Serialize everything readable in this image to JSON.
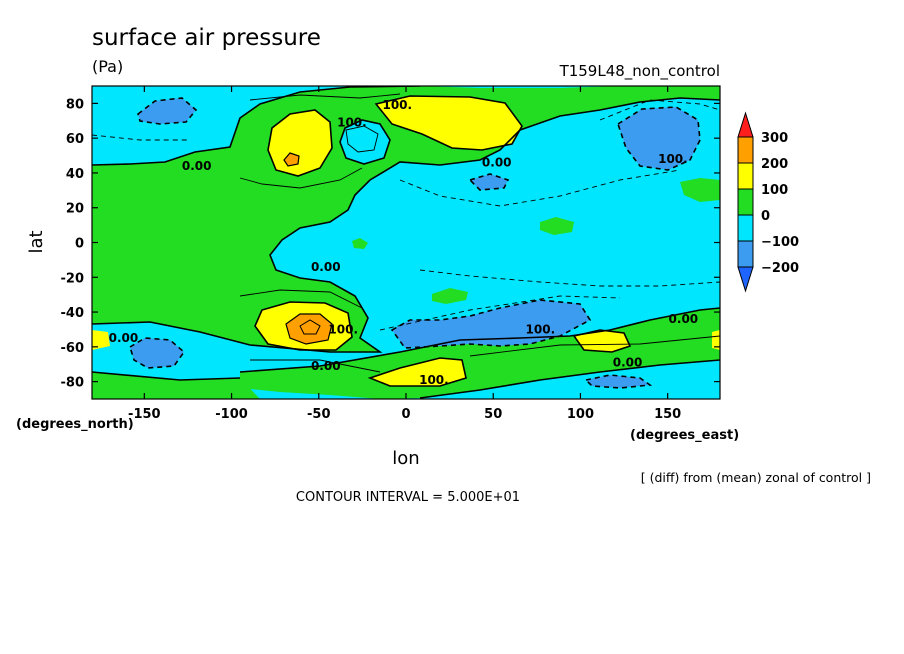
{
  "chart_data": {
    "type": "contour-map",
    "title": "surface air pressure",
    "units": "(Pa)",
    "experiment": "T159L48_non_control",
    "xlabel": "lon",
    "ylabel": "lat",
    "x_unit_label": "(degrees_east)",
    "y_unit_label": "(degrees_north)",
    "xlim": [
      -180,
      180
    ],
    "ylim": [
      -90,
      90
    ],
    "x_ticks": [
      -150,
      -100,
      -50,
      0,
      50,
      100,
      150
    ],
    "y_ticks": [
      80,
      60,
      40,
      20,
      0,
      -20,
      -40,
      -60,
      -80
    ],
    "x_tick_labels": [
      "-150",
      "-100",
      "-50",
      "0",
      "50",
      "100",
      "150"
    ],
    "y_tick_labels": [
      "80",
      "60",
      "40",
      "20",
      "0",
      "-20",
      "-40",
      "-60",
      "-80"
    ],
    "contour_interval": 50,
    "contour_interval_text": "CONTOUR INTERVAL = 5.000E+01",
    "note": "[ (diff) from (mean) zonal of control ]",
    "colorbar": {
      "levels": [
        -200,
        -100,
        0,
        100,
        200,
        300
      ],
      "labels": [
        "300",
        "200",
        "100",
        "0",
        "−100",
        "−200"
      ],
      "bands": [
        {
          "range": "< -200",
          "color": "#1e64ff"
        },
        {
          "range": "-200 to -100",
          "color": "#3c9cf0"
        },
        {
          "range": "-100 to 0",
          "color": "#00e6ff"
        },
        {
          "range": "0 to 100",
          "color": "#22dd22"
        },
        {
          "range": "100 to 200",
          "color": "#ffff00"
        },
        {
          "range": "200 to 300",
          "color": "#ffa000"
        },
        {
          "range": "> 300",
          "color": "#ff1e1e"
        }
      ]
    },
    "contour_labels": [
      {
        "text": "100.",
        "lon": -5,
        "lat": 79
      },
      {
        "text": "100.",
        "lon": -31,
        "lat": 69
      },
      {
        "text": "0.00",
        "lon": -120,
        "lat": 44
      },
      {
        "text": "0.00",
        "lon": 52,
        "lat": 46
      },
      {
        "text": "100.",
        "lon": 153,
        "lat": 48
      },
      {
        "text": "0.00",
        "lon": -46,
        "lat": -14
      },
      {
        "text": "0.00",
        "lon": -162,
        "lat": -55
      },
      {
        "text": "100.",
        "lon": -36,
        "lat": -50
      },
      {
        "text": "100.",
        "lon": 77,
        "lat": -50
      },
      {
        "text": "0.00",
        "lon": 159,
        "lat": -44
      },
      {
        "text": "0.00",
        "lon": 127,
        "lat": -69
      },
      {
        "text": "0.00",
        "lon": -46,
        "lat": -71
      },
      {
        "text": "100.",
        "lon": 16,
        "lat": -79
      }
    ]
  }
}
